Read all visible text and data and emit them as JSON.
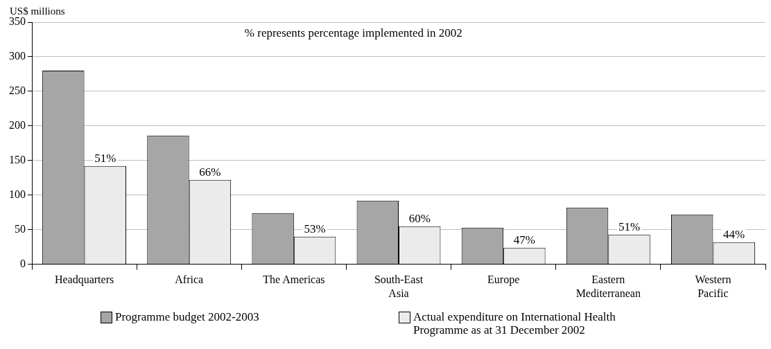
{
  "chart_data": {
    "type": "bar",
    "ylabel": "US$ millions",
    "annotations": [
      "% represents percentage implemented in 2002",
      {
        "text": "51%",
        "x": "Headquarters",
        "y": 142
      },
      {
        "text": "66%",
        "x": "Africa",
        "y": 122
      },
      {
        "text": "53%",
        "x": "The Americas",
        "y": 40
      },
      {
        "text": "60%",
        "x": "South-East Asia",
        "y": 55
      },
      {
        "text": "47%",
        "x": "Europe",
        "y": 24
      },
      {
        "text": "51%",
        "x": "Eastern Mediterranean",
        "y": 43
      },
      {
        "text": "44%",
        "x": "Western Pacific",
        "y": 32
      }
    ],
    "categories": [
      "Headquarters",
      "Africa",
      "The Americas",
      "South-East Asia",
      "Europe",
      "Eastern Mediterranean",
      "Western Pacific"
    ],
    "series": [
      {
        "name": "Programme budget 2002-2003",
        "color": "#a6a6a6",
        "values": [
          280,
          186,
          74,
          92,
          53,
          82,
          72
        ]
      },
      {
        "name": "Actual expenditure on International Health Programme as at 31 December 2002",
        "color": "#ebebeb",
        "values": [
          142,
          122,
          40,
          55,
          24,
          43,
          32
        ]
      }
    ],
    "ylim": [
      0,
      350
    ],
    "yticks": [
      0,
      50,
      100,
      150,
      200,
      250,
      300,
      350
    ],
    "grid": "y",
    "legend": "bottom"
  }
}
